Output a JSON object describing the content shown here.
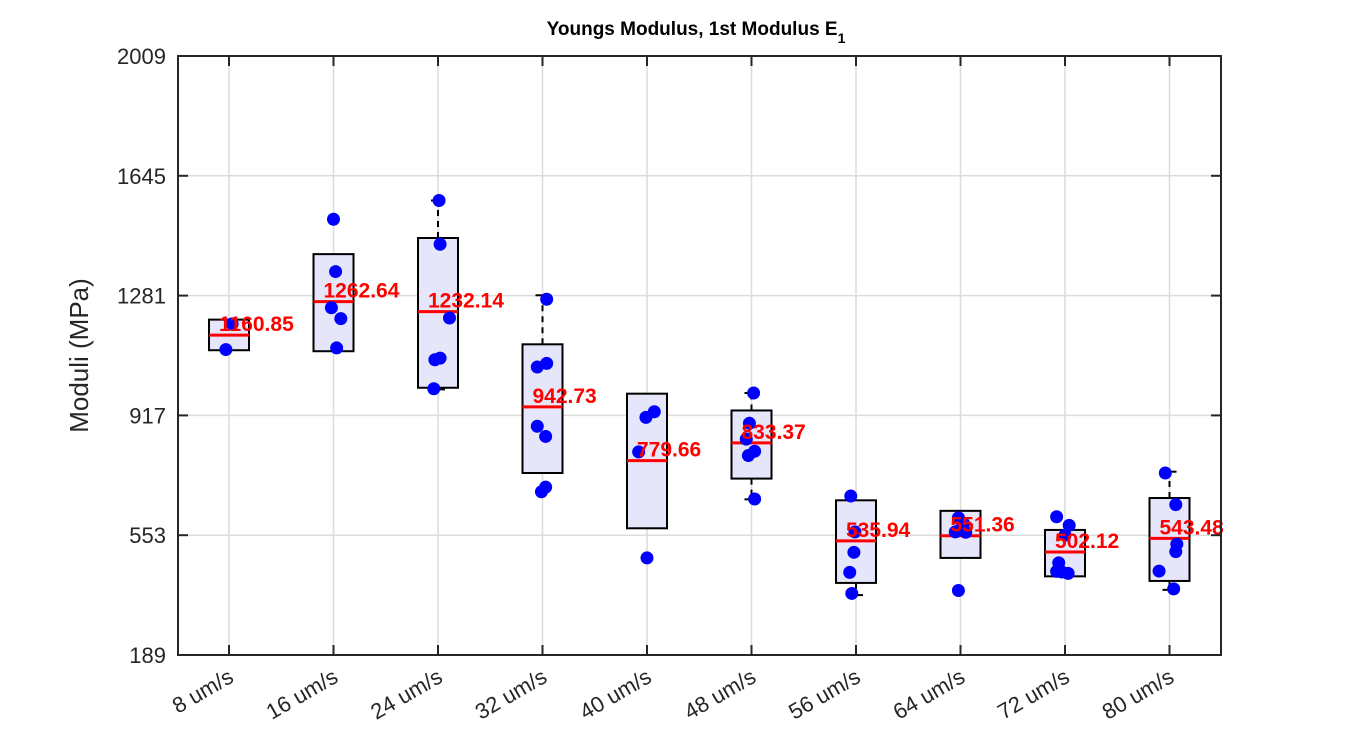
{
  "chart_data": {
    "type": "box",
    "title": "Youngs Modulus, 1st Modulus E",
    "title_subscript": "1",
    "xlabel": "",
    "ylabel": "Moduli (MPa)",
    "ylim": [
      189,
      2009
    ],
    "yticks": [
      189,
      553,
      917,
      1281,
      1645,
      2009
    ],
    "grid": true,
    "categories": [
      "8 um/s",
      "16 um/s",
      "24 um/s",
      "32 um/s",
      "40 um/s",
      "48 um/s",
      "56 um/s",
      "64 um/s",
      "72 um/s",
      "80 um/s"
    ],
    "boxes": [
      {
        "category": "8 um/s",
        "q1": 1115,
        "median": 1160.85,
        "q3": 1208,
        "whisker_low": null,
        "whisker_high": null
      },
      {
        "category": "16 um/s",
        "q1": 1112,
        "median": 1262.64,
        "q3": 1407,
        "whisker_low": null,
        "whisker_high": null
      },
      {
        "category": "24 um/s",
        "q1": 1001,
        "median": 1232.14,
        "q3": 1456,
        "whisker_low": 996,
        "whisker_high": 1570
      },
      {
        "category": "32 um/s",
        "q1": 742,
        "median": 942.73,
        "q3": 1133,
        "whisker_low": null,
        "whisker_high": 1282
      },
      {
        "category": "40 um/s",
        "q1": 574,
        "median": 779.66,
        "q3": 983,
        "whisker_low": null,
        "whisker_high": null
      },
      {
        "category": "48 um/s",
        "q1": 725,
        "median": 833.37,
        "q3": 932,
        "whisker_low": 662,
        "whisker_high": 985
      },
      {
        "category": "56 um/s",
        "q1": 408,
        "median": 535.94,
        "q3": 659,
        "whisker_low": 371,
        "whisker_high": null
      },
      {
        "category": "64 um/s",
        "q1": 484,
        "median": 551.36,
        "q3": 627,
        "whisker_low": null,
        "whisker_high": null
      },
      {
        "category": "72 um/s",
        "q1": 428,
        "median": 502.12,
        "q3": 569,
        "whisker_low": null,
        "whisker_high": null
      },
      {
        "category": "80 um/s",
        "q1": 414,
        "median": 543.48,
        "q3": 666,
        "whisker_low": 387,
        "whisker_high": 746
      }
    ],
    "median_labels": [
      "1160.85",
      "1262.64",
      "1232.14",
      "942.73",
      "779.66",
      "833.37",
      "535.94",
      "551.36",
      "502.12",
      "543.48"
    ],
    "points": [
      {
        "category": "8 um/s",
        "x_offset": -0.03,
        "y": 1117
      },
      {
        "category": "8 um/s",
        "x_offset": 0.03,
        "y": 1195
      },
      {
        "category": "16 um/s",
        "x_offset": 0.0,
        "y": 1513
      },
      {
        "category": "16 um/s",
        "x_offset": 0.02,
        "y": 1354
      },
      {
        "category": "16 um/s",
        "x_offset": -0.02,
        "y": 1244
      },
      {
        "category": "16 um/s",
        "x_offset": 0.07,
        "y": 1211
      },
      {
        "category": "16 um/s",
        "x_offset": 0.03,
        "y": 1122
      },
      {
        "category": "24 um/s",
        "x_offset": 0.01,
        "y": 1570
      },
      {
        "category": "24 um/s",
        "x_offset": 0.02,
        "y": 1437
      },
      {
        "category": "24 um/s",
        "x_offset": 0.11,
        "y": 1213
      },
      {
        "category": "24 um/s",
        "x_offset": 0.02,
        "y": 1091
      },
      {
        "category": "24 um/s",
        "x_offset": -0.03,
        "y": 1086
      },
      {
        "category": "24 um/s",
        "x_offset": -0.04,
        "y": 998
      },
      {
        "category": "32 um/s",
        "x_offset": 0.04,
        "y": 1270
      },
      {
        "category": "32 um/s",
        "x_offset": 0.04,
        "y": 1075
      },
      {
        "category": "32 um/s",
        "x_offset": -0.05,
        "y": 1064
      },
      {
        "category": "32 um/s",
        "x_offset": -0.05,
        "y": 884
      },
      {
        "category": "32 um/s",
        "x_offset": 0.03,
        "y": 853
      },
      {
        "category": "32 um/s",
        "x_offset": 0.03,
        "y": 699
      },
      {
        "category": "32 um/s",
        "x_offset": -0.01,
        "y": 685
      },
      {
        "category": "40 um/s",
        "x_offset": 0.07,
        "y": 928
      },
      {
        "category": "40 um/s",
        "x_offset": -0.01,
        "y": 911
      },
      {
        "category": "40 um/s",
        "x_offset": -0.08,
        "y": 806
      },
      {
        "category": "40 um/s",
        "x_offset": 0.0,
        "y": 484
      },
      {
        "category": "48 um/s",
        "x_offset": 0.02,
        "y": 985
      },
      {
        "category": "48 um/s",
        "x_offset": -0.02,
        "y": 893
      },
      {
        "category": "48 um/s",
        "x_offset": -0.05,
        "y": 845
      },
      {
        "category": "48 um/s",
        "x_offset": 0.03,
        "y": 808
      },
      {
        "category": "48 um/s",
        "x_offset": -0.03,
        "y": 795
      },
      {
        "category": "48 um/s",
        "x_offset": 0.03,
        "y": 663
      },
      {
        "category": "56 um/s",
        "x_offset": -0.05,
        "y": 672
      },
      {
        "category": "56 um/s",
        "x_offset": -0.01,
        "y": 563
      },
      {
        "category": "56 um/s",
        "x_offset": -0.02,
        "y": 501
      },
      {
        "category": "56 um/s",
        "x_offset": -0.06,
        "y": 440
      },
      {
        "category": "56 um/s",
        "x_offset": -0.04,
        "y": 376
      },
      {
        "category": "64 um/s",
        "x_offset": -0.02,
        "y": 606
      },
      {
        "category": "64 um/s",
        "x_offset": 0.03,
        "y": 588
      },
      {
        "category": "64 um/s",
        "x_offset": 0.0,
        "y": 571
      },
      {
        "category": "64 um/s",
        "x_offset": -0.05,
        "y": 563
      },
      {
        "category": "64 um/s",
        "x_offset": 0.05,
        "y": 562
      },
      {
        "category": "64 um/s",
        "x_offset": -0.02,
        "y": 385
      },
      {
        "category": "72 um/s",
        "x_offset": -0.08,
        "y": 609
      },
      {
        "category": "72 um/s",
        "x_offset": 0.04,
        "y": 583
      },
      {
        "category": "72 um/s",
        "x_offset": 0.0,
        "y": 553
      },
      {
        "category": "72 um/s",
        "x_offset": -0.06,
        "y": 469
      },
      {
        "category": "72 um/s",
        "x_offset": -0.08,
        "y": 443
      },
      {
        "category": "72 um/s",
        "x_offset": -0.03,
        "y": 441
      },
      {
        "category": "72 um/s",
        "x_offset": 0.03,
        "y": 437
      },
      {
        "category": "80 um/s",
        "x_offset": -0.04,
        "y": 742
      },
      {
        "category": "80 um/s",
        "x_offset": 0.06,
        "y": 646
      },
      {
        "category": "80 um/s",
        "x_offset": 0.07,
        "y": 526
      },
      {
        "category": "80 um/s",
        "x_offset": 0.06,
        "y": 503
      },
      {
        "category": "80 um/s",
        "x_offset": -0.1,
        "y": 444
      },
      {
        "category": "80 um/s",
        "x_offset": 0.04,
        "y": 390
      }
    ],
    "colors": {
      "box_fill": "#e6e6fa",
      "box_edge": "#000000",
      "median": "#ff0000",
      "points": "#0000ff",
      "label": "#ff0000",
      "grid": "#dcdcdc",
      "axis": "#262626"
    }
  }
}
